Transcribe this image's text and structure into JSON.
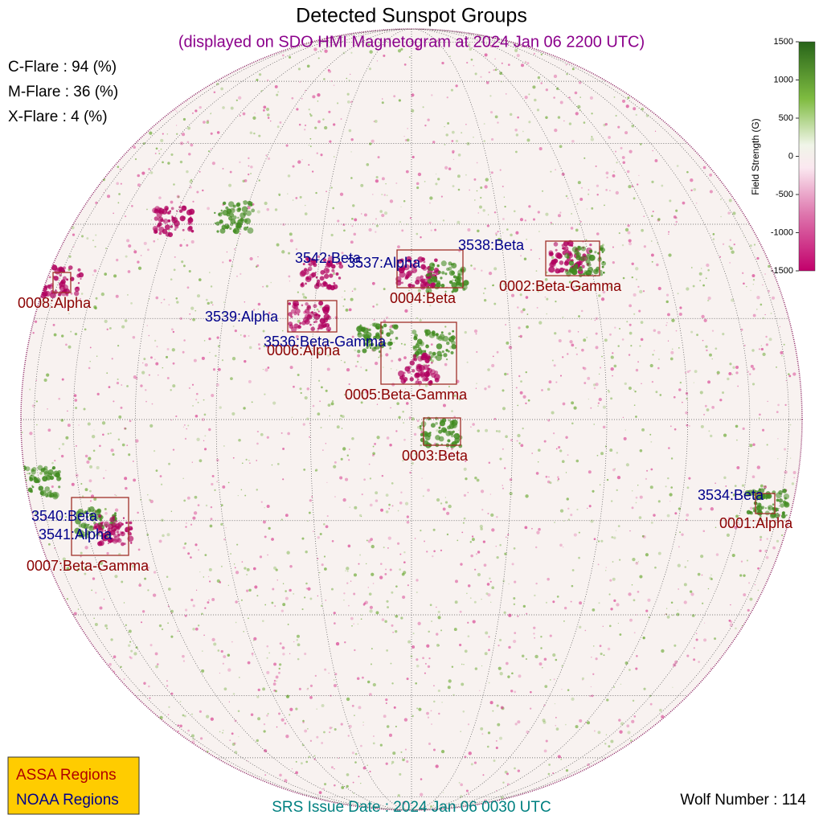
{
  "header": {
    "title": "Detected Sunspot Groups",
    "subtitle": "(displayed on SDO HMI Magnetogram at 2024 Jan 06 2200 UTC)"
  },
  "flares": [
    "C-Flare : 94 (%)",
    "M-Flare : 36 (%)",
    "X-Flare :  4 (%)"
  ],
  "colorbar": {
    "label": "Field Strength (G)",
    "lim": [
      -1500,
      1500
    ],
    "ticks": [
      1500,
      1000,
      500,
      0,
      -500,
      -1000,
      -1500
    ]
  },
  "assa_regions": [
    "0008:Alpha",
    "0004:Beta",
    "0002:Beta-Gamma",
    "0006:Alpha",
    "0005:Beta-Gamma",
    "0003:Beta",
    "0007:Beta-Gamma",
    "0001:Alpha"
  ],
  "noaa_regions": [
    "3542:Beta",
    "3537:Alpha",
    "3538:Beta",
    "3539:Alpha",
    "3536:Beta-Gamma",
    "3540:Beta",
    "3541:Alpha",
    "3534:Beta"
  ],
  "legend": [
    "ASSA Regions",
    "NOAA Regions"
  ],
  "footer": {
    "issue_date": "SRS Issue Date : 2024 Jan 06 0030 UTC",
    "wolf_number": "Wolf Number : 114"
  }
}
